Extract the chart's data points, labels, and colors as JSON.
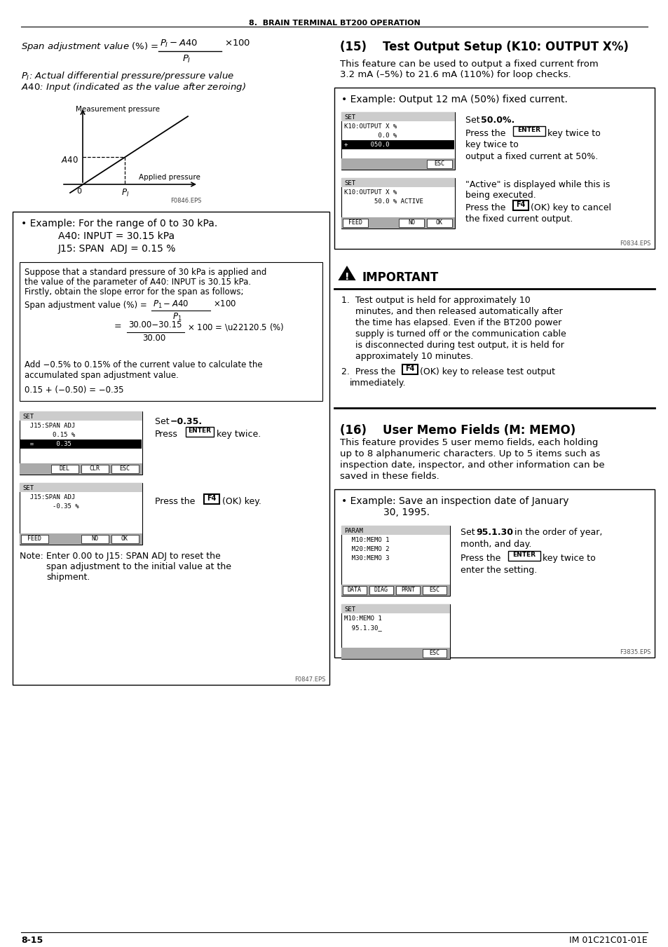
{
  "page_header": "8.  BRAIN TERMINAL BT200 OPERATION",
  "page_footer_left": "8-15",
  "page_footer_right": "IM 01C21C01-01E",
  "bg_color": "#ffffff",
  "text_color": "#000000",
  "section15_title": "(15)    Test Output Setup (K10: OUTPUT X%)",
  "section15_body1": "This feature can be used to output a fixed current from",
  "section15_body2": "3.2 mA (–5%) to 21.6 mA (110%) for loop checks.",
  "section16_title": "(16)    User Memo Fields (M: MEMO)",
  "section16_body1": "This feature provides 5 user memo fields, each holding",
  "section16_body2": "up to 8 alphanumeric characters. Up to 5 items such as",
  "section16_body3": "inspection date, inspector, and other information can be",
  "section16_body4": "saved in these fields.",
  "important_title": "IMPORTANT",
  "inner_box_lines": [
    "Suppose that a standard pressure of 30 kPa is applied and",
    "the value of the parameter of A40: INPUT is 30.15 kPa.",
    "Firstly, obtain the slope error for the span as follows;"
  ],
  "k10_file": "F0834.EPS",
  "memo_file": "F3835.EPS",
  "left_file": "F0847.EPS",
  "graph_file": "F0846.EPS"
}
